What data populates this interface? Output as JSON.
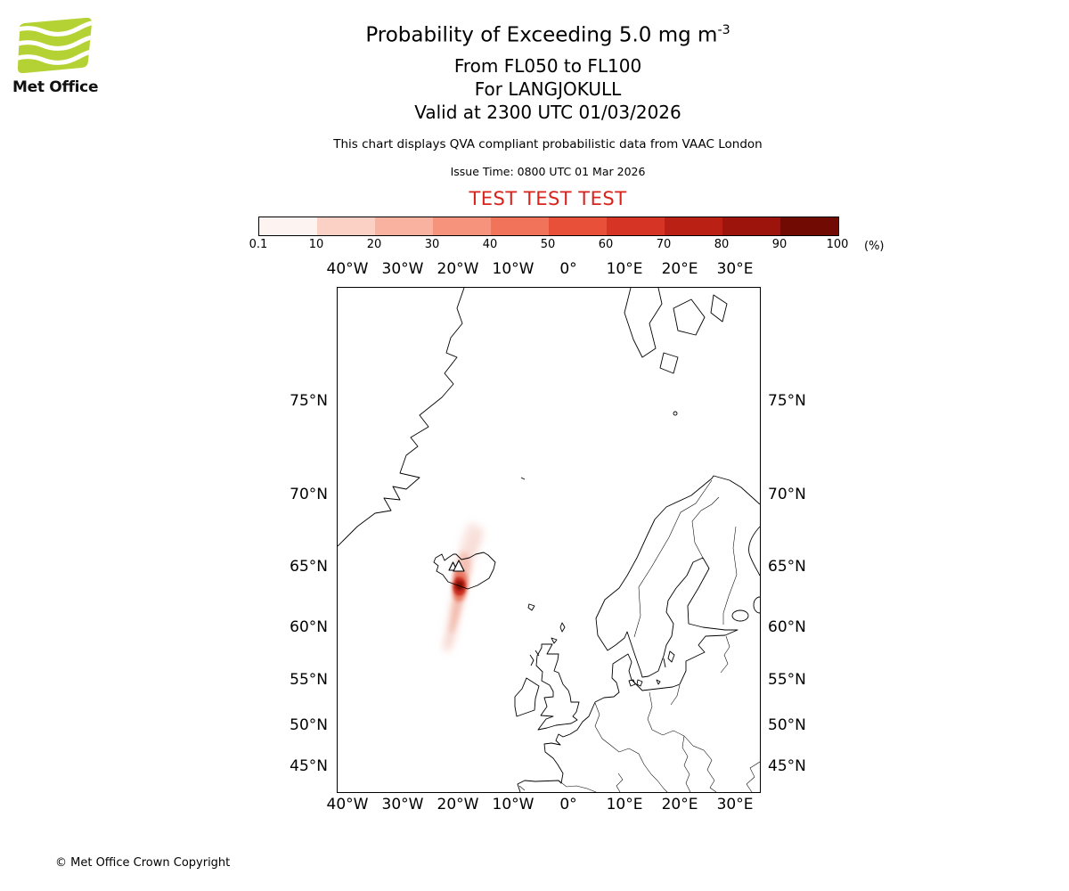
{
  "logo": {
    "brand": "Met Office",
    "green": "#b4d233"
  },
  "header": {
    "title_prefix": "Probability of Exceeding 5.0 mg m",
    "title_exponent": "-3",
    "subtitle1": "From FL050 to FL100",
    "subtitle2": "For LANGJOKULL",
    "subtitle3": "Valid at 2300 UTC 01/03/2026",
    "note": "This chart displays QVA compliant probabilistic data from VAAC London",
    "issue_time": "Issue Time: 0800 UTC 01 Mar 2026",
    "test_banner": "TEST TEST TEST",
    "test_color": "#d8231d"
  },
  "colorbar": {
    "unit": "(%)",
    "tick_labels": [
      "0.1",
      "10",
      "20",
      "30",
      "40",
      "50",
      "60",
      "70",
      "80",
      "90",
      "100"
    ],
    "colors": [
      "#fdf4f1",
      "#fbd1c6",
      "#f9b2a0",
      "#f6937c",
      "#f1735a",
      "#e9503a",
      "#d63424",
      "#bb2015",
      "#9c140b",
      "#720a04"
    ]
  },
  "map": {
    "lon_labels": [
      "40°W",
      "30°W",
      "20°W",
      "10°W",
      "0°",
      "10°E",
      "20°E",
      "30°E"
    ],
    "lat_labels": [
      "75°N",
      "70°N",
      "65°N",
      "60°N",
      "55°N",
      "50°N",
      "45°N"
    ]
  },
  "footer": {
    "copyright": "© Met Office Crown Copyright"
  },
  "chart_data": {
    "type": "heatmap",
    "title": "Probability of Exceeding 5.0 mg m^-3",
    "layer": "From FL050 to FL100",
    "volcano": "LANGJOKULL",
    "valid_time": "2300 UTC 01/03/2026",
    "issue_time": "0800 UTC 01 Mar 2026",
    "source_note": "QVA compliant probabilistic data from VAAC London",
    "projection": "mercator",
    "map_extent": {
      "lon_range": [
        -42,
        34.3
      ],
      "lat_range": [
        42,
        79.5
      ]
    },
    "lon_gridlabels": [
      -40,
      -30,
      -20,
      -10,
      0,
      10,
      20,
      30
    ],
    "lat_gridlabels": [
      75,
      70,
      65,
      60,
      55,
      50,
      45
    ],
    "legend": {
      "ticks": [
        0.1,
        10,
        20,
        30,
        40,
        50,
        60,
        70,
        80,
        90,
        100
      ],
      "unit": "%"
    },
    "volcano_marker": {
      "name": "LANGJOKULL",
      "approx_lat": 64.7,
      "approx_lon": -20.5
    },
    "plume_regions": [
      {
        "region": "core over central/south Iceland near 64N 20.5W",
        "probability_pct": "60-100"
      },
      {
        "region": "diffuse area around Iceland approx 62-67N, 24-14W",
        "probability_pct": "1-30"
      },
      {
        "region": "narrow filament extending south to about 58N near 20W",
        "probability_pct": "1-10"
      }
    ]
  }
}
